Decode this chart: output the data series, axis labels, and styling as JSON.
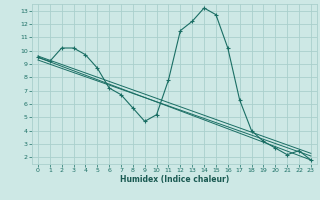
{
  "xlabel": "Humidex (Indice chaleur)",
  "bg_color": "#cde8e5",
  "grid_color": "#aad0cc",
  "line_color": "#1a6e64",
  "xlim": [
    -0.5,
    23.5
  ],
  "ylim": [
    1.5,
    13.5
  ],
  "xticks": [
    0,
    1,
    2,
    3,
    4,
    5,
    6,
    7,
    8,
    9,
    10,
    11,
    12,
    13,
    14,
    15,
    16,
    17,
    18,
    19,
    20,
    21,
    22,
    23
  ],
  "yticks": [
    2,
    3,
    4,
    5,
    6,
    7,
    8,
    9,
    10,
    11,
    12,
    13
  ],
  "main_x": [
    0,
    1,
    2,
    3,
    4,
    5,
    6,
    7,
    8,
    9,
    10,
    11,
    12,
    13,
    14,
    15,
    16,
    17,
    18,
    19,
    20,
    21,
    22,
    23
  ],
  "main_y": [
    9.5,
    9.2,
    10.2,
    10.2,
    9.7,
    8.7,
    7.2,
    6.7,
    5.7,
    4.7,
    5.2,
    7.8,
    11.5,
    12.2,
    13.2,
    12.7,
    10.2,
    6.3,
    4.0,
    3.2,
    2.7,
    2.2,
    2.5,
    1.8
  ],
  "trend_lines": [
    {
      "x": [
        0,
        23
      ],
      "y": [
        9.5,
        1.8
      ]
    },
    {
      "x": [
        0,
        23
      ],
      "y": [
        9.3,
        2.1
      ]
    },
    {
      "x": [
        0,
        23
      ],
      "y": [
        9.6,
        2.3
      ]
    }
  ]
}
